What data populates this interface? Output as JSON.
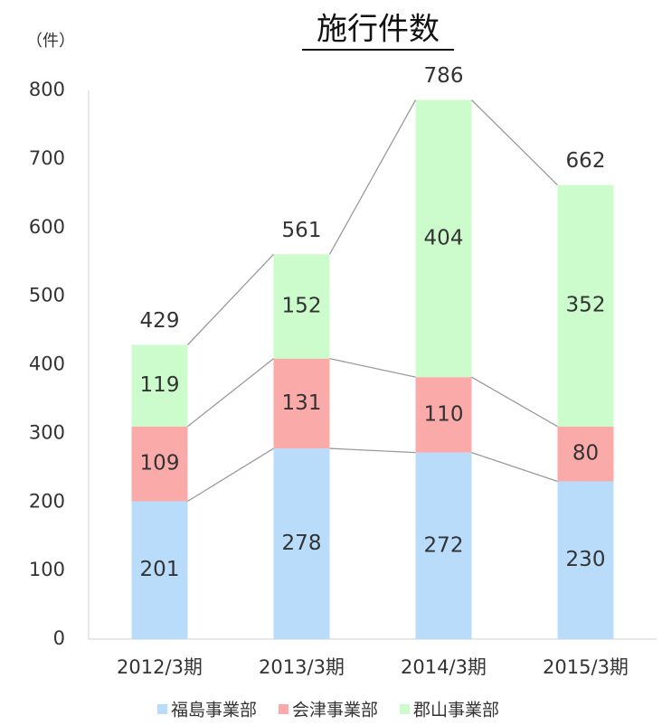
{
  "chart_data": {
    "type": "stacked_bar",
    "title": "施行件数",
    "y_unit_label": "（件）",
    "categories": [
      "2012/3期",
      "2013/3期",
      "2014/3期",
      "2015/3期"
    ],
    "series": [
      {
        "name": "福島事業部",
        "color": "#b9dcfa",
        "values": [
          201,
          278,
          272,
          230
        ]
      },
      {
        "name": "会津事業部",
        "color": "#fbaaaa",
        "values": [
          109,
          131,
          110,
          80
        ]
      },
      {
        "name": "郡山事業部",
        "color": "#ccfccc",
        "values": [
          119,
          152,
          404,
          352
        ]
      }
    ],
    "totals": [
      429,
      561,
      786,
      662
    ],
    "ylim": [
      0,
      800
    ],
    "yticks": [
      0,
      100,
      200,
      300,
      400,
      500,
      600,
      700,
      800
    ],
    "grid": false,
    "legend": "bottom",
    "series_lines": true
  }
}
